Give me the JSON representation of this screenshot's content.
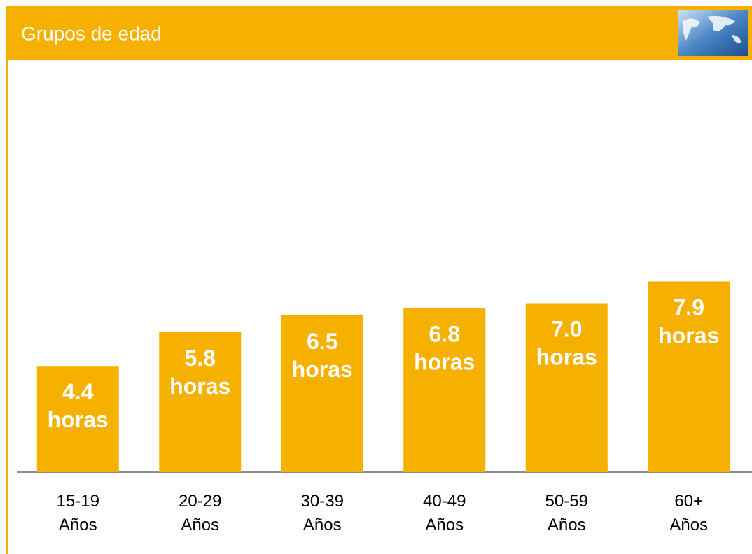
{
  "chart_data": {
    "type": "bar",
    "title": "Grupos de edad",
    "categories": [
      "15-19 Años",
      "20-29 Años",
      "30-39 Años",
      "40-49 Años",
      "50-59 Años",
      "60+ Años"
    ],
    "values": [
      4.4,
      5.8,
      6.5,
      6.8,
      7.0,
      7.9
    ],
    "value_labels": [
      "4.4 horas",
      "5.8 horas",
      "6.5 horas",
      "6.8 horas",
      "7.0 horas",
      "7.9 horas"
    ],
    "color": "#f5b000"
  }
}
